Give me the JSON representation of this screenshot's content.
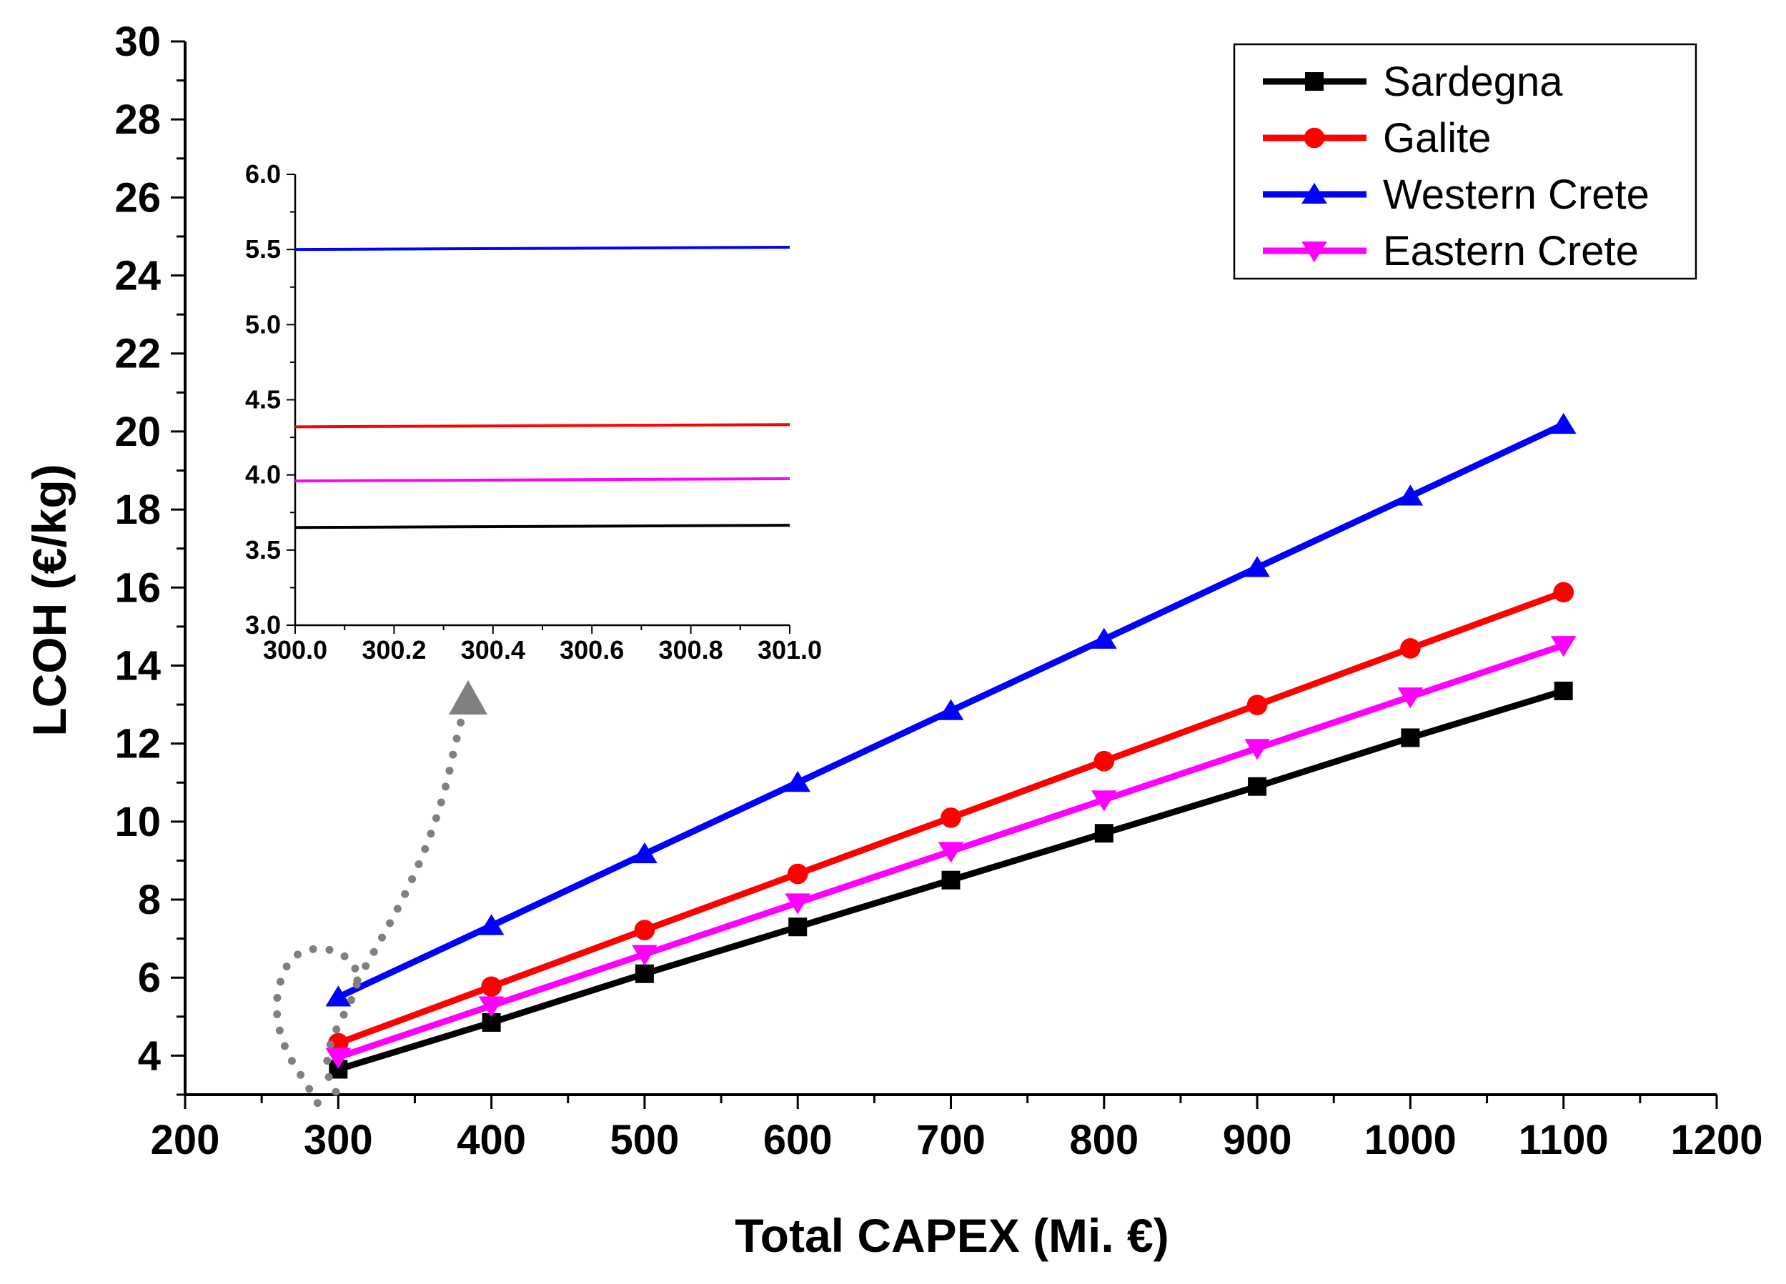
{
  "chart_data": [
    {
      "id": "main",
      "type": "line",
      "xlabel": "Total CAPEX (Mi. €)",
      "ylabel": "LCOH (€/kg)",
      "xlim": [
        200,
        1200
      ],
      "ylim": [
        3,
        30
      ],
      "xticks": [
        200,
        300,
        400,
        500,
        600,
        700,
        800,
        900,
        1000,
        1100,
        1200
      ],
      "yticks": [
        4,
        6,
        8,
        10,
        12,
        14,
        16,
        18,
        20,
        22,
        24,
        26,
        28,
        30
      ],
      "x": [
        300,
        400,
        500,
        600,
        700,
        800,
        900,
        1000,
        1100
      ],
      "series": [
        {
          "name": "Sardegna",
          "color": "#000000",
          "marker": "square",
          "values": [
            3.65,
            4.85,
            6.1,
            7.3,
            8.5,
            9.7,
            10.9,
            12.15,
            13.35
          ]
        },
        {
          "name": "Galite",
          "color": "#ff0000",
          "marker": "circle",
          "values": [
            4.32,
            5.77,
            7.22,
            8.66,
            10.1,
            11.55,
            12.99,
            14.44,
            15.88
          ]
        },
        {
          "name": "Western Crete",
          "color": "#0000ff",
          "marker": "triangle-up",
          "values": [
            5.5,
            7.33,
            9.17,
            11.0,
            12.84,
            14.67,
            16.51,
            18.34,
            20.18
          ]
        },
        {
          "name": "Eastern Crete",
          "color": "#ff00ff",
          "marker": "triangle-down",
          "values": [
            3.96,
            5.28,
            6.6,
            7.92,
            9.24,
            10.56,
            11.88,
            13.2,
            14.52
          ]
        }
      ],
      "legend": "top-right"
    },
    {
      "id": "inset",
      "type": "line",
      "xlim": [
        300.0,
        301.0
      ],
      "ylim": [
        3.0,
        6.0
      ],
      "xticks": [
        "300.0",
        "300.2",
        "300.4",
        "300.6",
        "300.8",
        "301.0"
      ],
      "yticks": [
        "3.0",
        "3.5",
        "4.0",
        "4.5",
        "5.0",
        "5.5",
        "6.0"
      ],
      "x": [
        300.0,
        301.0
      ],
      "series": [
        {
          "name": "Sardegna",
          "color": "#000000",
          "values": [
            3.65,
            3.665
          ]
        },
        {
          "name": "Galite",
          "color": "#ff0000",
          "values": [
            4.32,
            4.335
          ]
        },
        {
          "name": "Western Crete",
          "color": "#0000ff",
          "values": [
            5.5,
            5.515
          ]
        },
        {
          "name": "Eastern Crete",
          "color": "#ff00ff",
          "values": [
            3.96,
            3.975
          ]
        }
      ]
    }
  ],
  "annotation": {
    "type": "dotted-arrow",
    "color": "#808080"
  }
}
